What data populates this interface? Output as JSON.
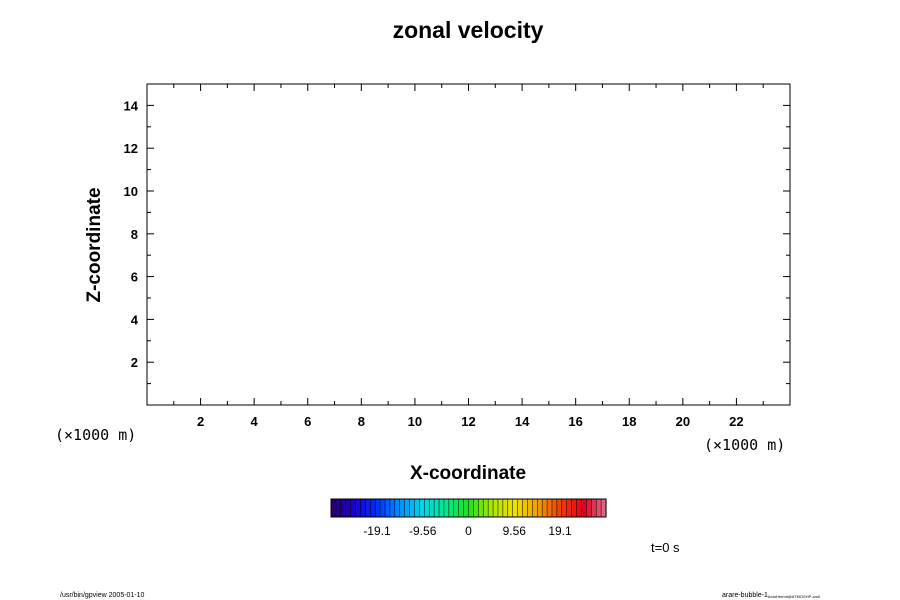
{
  "chart_data": {
    "type": "heatmap",
    "title": "zonal velocity",
    "xlabel": "X-coordinate",
    "ylabel": "Z-coordinate",
    "x_unit_label": "(×1000 m)",
    "y_unit_label": "(×1000 m)",
    "xlim": [
      0,
      24
    ],
    "ylim": [
      0,
      15
    ],
    "xticks": [
      2,
      4,
      6,
      8,
      10,
      12,
      14,
      16,
      18,
      20,
      22
    ],
    "yticks": [
      2,
      4,
      6,
      8,
      10,
      12,
      14
    ],
    "x_minor_step": 1,
    "y_minor_step": 1,
    "grid": false,
    "values": [],
    "colorbar": {
      "tick_labels": [
        "-19.1",
        "-9.56",
        "0",
        "9.56",
        "19.1"
      ],
      "tick_values": [
        -19.1,
        -9.56,
        0,
        9.56,
        19.1
      ],
      "range": [
        -28.7,
        28.7
      ],
      "colors": [
        "#2a006a",
        "#1a00c8",
        "#0030ff",
        "#0090ff",
        "#00d8e8",
        "#00e890",
        "#20e020",
        "#a8e800",
        "#f0e000",
        "#f0a000",
        "#f04000",
        "#e00020",
        "#e07090"
      ]
    },
    "time_label": "t=0 s"
  },
  "footer": {
    "left": "/usr/bin/gpview 2005-01-10",
    "right_main": "arare-bubble-1",
    "right_sub": "ActoHermit@ATMOSHP-sm0"
  }
}
